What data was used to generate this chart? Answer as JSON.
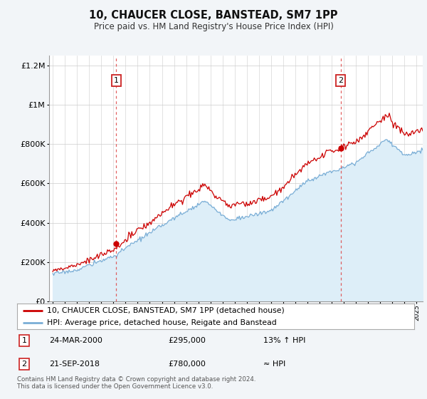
{
  "title": "10, CHAUCER CLOSE, BANSTEAD, SM7 1PP",
  "subtitle": "Price paid vs. HM Land Registry's House Price Index (HPI)",
  "legend_line1": "10, CHAUCER CLOSE, BANSTEAD, SM7 1PP (detached house)",
  "legend_line2": "HPI: Average price, detached house, Reigate and Banstead",
  "annotation1_label": "1",
  "annotation1_date": "24-MAR-2000",
  "annotation1_price": "£295,000",
  "annotation1_hpi": "13% ↑ HPI",
  "annotation2_label": "2",
  "annotation2_date": "21-SEP-2018",
  "annotation2_price": "£780,000",
  "annotation2_hpi": "≈ HPI",
  "footer": "Contains HM Land Registry data © Crown copyright and database right 2024.\nThis data is licensed under the Open Government Licence v3.0.",
  "sale1_x": 2000.23,
  "sale1_y": 295000,
  "sale2_x": 2018.73,
  "sale2_y": 780000,
  "ylim": [
    0,
    1250000
  ],
  "xlim": [
    1994.7,
    2025.5
  ],
  "red_color": "#cc0000",
  "blue_color": "#7aaed6",
  "blue_fill": "#ddeef8",
  "background_color": "#f2f5f8",
  "plot_bg_color": "#ffffff",
  "grid_color": "#cccccc"
}
